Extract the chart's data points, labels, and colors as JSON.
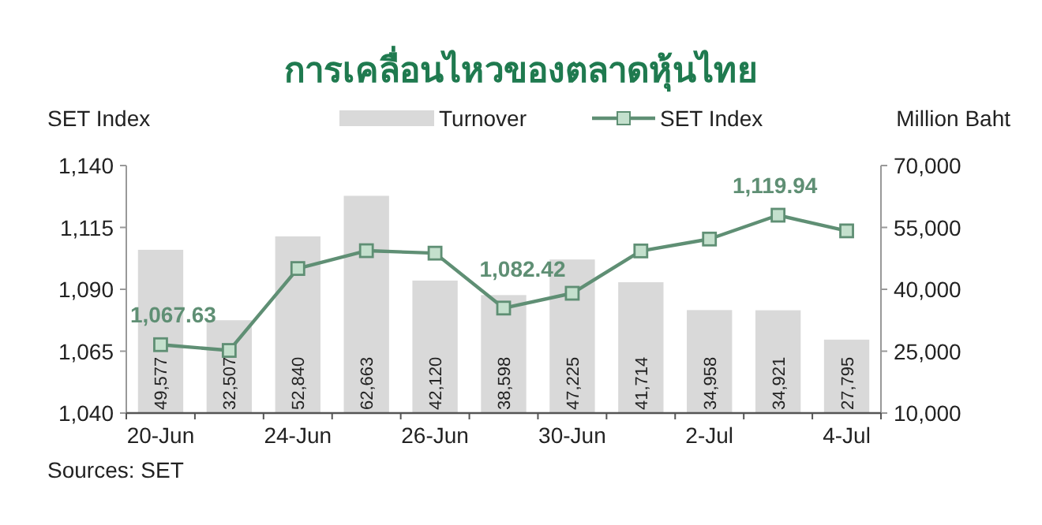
{
  "chart_data": {
    "type": "bar",
    "title": "การเคลื่อนไหวของตลาดหุ้นไทย",
    "ylabel": "SET Index",
    "y2label": "Million Baht",
    "categories": [
      "20-Jun",
      null,
      "24-Jun",
      null,
      "26-Jun",
      null,
      "30-Jun",
      null,
      "2-Jul",
      null,
      "4-Jul"
    ],
    "series": [
      {
        "name": "Turnover",
        "axis": "y2",
        "color": "#d9d9d9",
        "values": [
          49577,
          32507,
          52840,
          62663,
          42120,
          38598,
          47225,
          41714,
          34958,
          34921,
          27795
        ],
        "value_labels": [
          "49,577",
          "32,507",
          "52,840",
          "62,663",
          "42,120",
          "38,598",
          "47,225",
          "41,714",
          "34,958",
          "34,921",
          "27,795"
        ]
      },
      {
        "name": "SET Index",
        "type": "line",
        "axis": "y",
        "color": "#5f8f74",
        "marker": "square",
        "values": [
          1067.63,
          1065.3,
          1098.4,
          1105.6,
          1104.6,
          1082.42,
          1088.4,
          1105.5,
          1110.3,
          1119.94,
          1113.6
        ],
        "value_labels": [
          "1,067.63",
          null,
          null,
          null,
          null,
          "1,082.42",
          null,
          null,
          null,
          "1,119.94",
          null
        ]
      }
    ],
    "ylim": [
      1040,
      1140
    ],
    "yticks": [
      {
        "value": 1040,
        "label": "1,040"
      },
      {
        "value": 1065,
        "label": "1,065"
      },
      {
        "value": 1090,
        "label": "1,090"
      },
      {
        "value": 1115,
        "label": "1,115"
      },
      {
        "value": 1140,
        "label": "1,140"
      }
    ],
    "y2lim": [
      10000,
      70000
    ],
    "y2ticks": [
      {
        "value": 10000,
        "label": "10,000"
      },
      {
        "value": 25000,
        "label": "25,000"
      },
      {
        "value": 40000,
        "label": "40,000"
      },
      {
        "value": 55000,
        "label": "55,000"
      },
      {
        "value": 70000,
        "label": "70,000"
      }
    ],
    "legend": "top",
    "grid": false,
    "annotations": [
      "Sources: SET"
    ]
  }
}
